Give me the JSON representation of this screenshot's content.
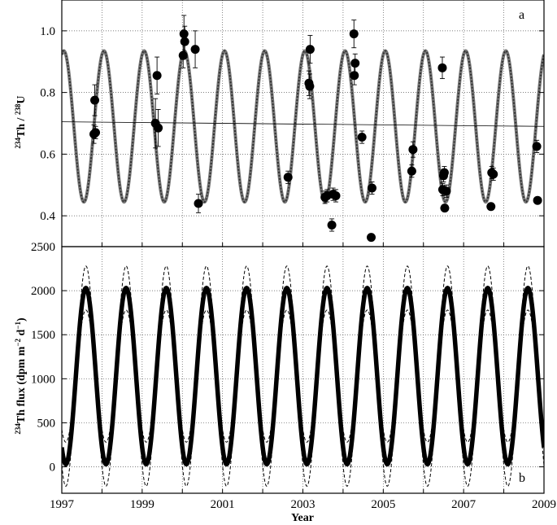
{
  "chart_data": [
    {
      "panel": "a",
      "type": "scatter",
      "xlim": [
        1997,
        2009
      ],
      "ylim": [
        0.3,
        1.1
      ],
      "y_ticks": [
        0.4,
        0.6,
        0.8,
        1.0
      ],
      "y_tick_labels": [
        "0.4",
        "0.6",
        "0.8",
        "1.0"
      ],
      "ylabel": {
        "pre": "234",
        "mid1": "Th / ",
        "pre2": "238",
        "mid2": "U"
      },
      "grid": true,
      "model_curve": {
        "mean": 0.69,
        "amplitude": 0.245,
        "period_years": 1,
        "peak_phase_year": 0.05,
        "style": "dotted-thick"
      },
      "trend_line": {
        "x": [
          1997,
          2009
        ],
        "y": [
          0.705,
          0.69
        ]
      },
      "observations": [
        {
          "x": 1997.82,
          "y": 0.775,
          "err": 0.05
        },
        {
          "x": 1997.8,
          "y": 0.665,
          "err": 0.03
        },
        {
          "x": 1997.84,
          "y": 0.67,
          "err": 0.02
        },
        {
          "x": 1999.37,
          "y": 0.855,
          "err": 0.06
        },
        {
          "x": 1999.33,
          "y": 0.7,
          "err": 0.08
        },
        {
          "x": 1999.4,
          "y": 0.685,
          "err": 0.06
        },
        {
          "x": 2000.04,
          "y": 0.99,
          "err": 0.06
        },
        {
          "x": 2000.06,
          "y": 0.965,
          "err": 0.05
        },
        {
          "x": 2000.02,
          "y": 0.92,
          "err": 0.04
        },
        {
          "x": 2000.32,
          "y": 0.94,
          "err": 0.06
        },
        {
          "x": 2000.4,
          "y": 0.44,
          "err": 0.03
        },
        {
          "x": 2002.63,
          "y": 0.525,
          "err": 0.02
        },
        {
          "x": 2003.18,
          "y": 0.94,
          "err": 0.045
        },
        {
          "x": 2003.15,
          "y": 0.83,
          "err": 0.04
        },
        {
          "x": 2003.17,
          "y": 0.82,
          "err": 0.04
        },
        {
          "x": 2003.55,
          "y": 0.46,
          "err": 0.02
        },
        {
          "x": 2003.6,
          "y": 0.465,
          "err": 0.02
        },
        {
          "x": 2003.75,
          "y": 0.47,
          "err": 0.02
        },
        {
          "x": 2003.82,
          "y": 0.465,
          "err": 0.02
        },
        {
          "x": 2003.72,
          "y": 0.37,
          "err": 0.02
        },
        {
          "x": 2004.27,
          "y": 0.99,
          "err": 0.045
        },
        {
          "x": 2004.3,
          "y": 0.895,
          "err": 0.03
        },
        {
          "x": 2004.28,
          "y": 0.855,
          "err": 0.03
        },
        {
          "x": 2004.47,
          "y": 0.655,
          "err": 0.02
        },
        {
          "x": 2004.72,
          "y": 0.49,
          "err": 0.02
        },
        {
          "x": 2004.7,
          "y": 0.33,
          "err": 0.0
        },
        {
          "x": 2005.74,
          "y": 0.615,
          "err": 0.025
        },
        {
          "x": 2005.71,
          "y": 0.545,
          "err": 0.02
        },
        {
          "x": 2006.47,
          "y": 0.88,
          "err": 0.035
        },
        {
          "x": 2006.52,
          "y": 0.54,
          "err": 0.02
        },
        {
          "x": 2006.5,
          "y": 0.53,
          "err": 0.02
        },
        {
          "x": 2006.48,
          "y": 0.485,
          "err": 0.02
        },
        {
          "x": 2006.57,
          "y": 0.48,
          "err": 0.02
        },
        {
          "x": 2006.53,
          "y": 0.425,
          "err": 0.01
        },
        {
          "x": 2007.7,
          "y": 0.54,
          "err": 0.02
        },
        {
          "x": 2007.74,
          "y": 0.535,
          "err": 0.02
        },
        {
          "x": 2007.68,
          "y": 0.43,
          "err": 0.01
        },
        {
          "x": 2008.82,
          "y": 0.625,
          "err": 0.02
        },
        {
          "x": 2008.84,
          "y": 0.45,
          "err": 0.01
        }
      ],
      "panel_letter": "a"
    },
    {
      "panel": "b",
      "type": "line",
      "xlim": [
        1997,
        2009
      ],
      "ylim": [
        -300,
        2500
      ],
      "y_ticks": [
        0,
        500,
        1000,
        1500,
        2000,
        2500
      ],
      "y_tick_labels": [
        "0",
        "500",
        "1000",
        "1500",
        "2000",
        "2500"
      ],
      "x_ticks": [
        1997,
        1999,
        2001,
        2003,
        2005,
        2007,
        2009
      ],
      "x_tick_labels": [
        "1997",
        "1999",
        "2001",
        "2003",
        "2005",
        "2007",
        "2009"
      ],
      "xlabel": "Year",
      "ylabel": {
        "pre": "234",
        "mid1": "Th flux (dpm m",
        "sup1": "−2",
        "mid2": " d",
        "sup2": "−1",
        "end": ")"
      },
      "grid": true,
      "series": [
        {
          "style": "thick",
          "mean": 1030,
          "amplitude": 1000,
          "period_years": 1,
          "peak_phase_year": 0.6
        },
        {
          "style": "dashed",
          "mean": 1030,
          "amplitude": 1250,
          "period_years": 1,
          "peak_phase_year": 0.6
        },
        {
          "style": "dashed",
          "mean": 1030,
          "amplitude": 750,
          "period_years": 1,
          "peak_phase_year": 0.6
        }
      ],
      "panel_letter": "b"
    }
  ]
}
